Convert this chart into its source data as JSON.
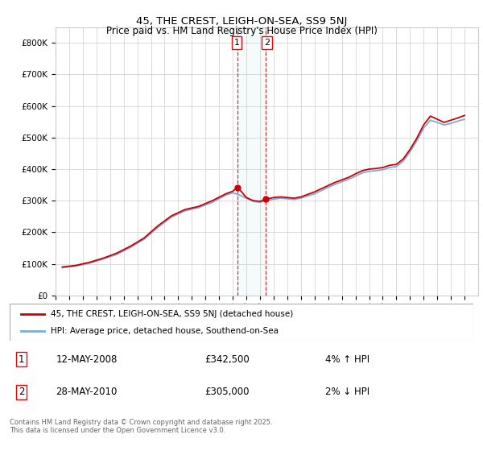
{
  "title": "45, THE CREST, LEIGH-ON-SEA, SS9 5NJ",
  "subtitle": "Price paid vs. HM Land Registry's House Price Index (HPI)",
  "legend_line1": "45, THE CREST, LEIGH-ON-SEA, SS9 5NJ (detached house)",
  "legend_line2": "HPI: Average price, detached house, Southend-on-Sea",
  "annotation1_date": "12-MAY-2008",
  "annotation1_price": "£342,500",
  "annotation1_hpi": "4% ↑ HPI",
  "annotation2_date": "28-MAY-2010",
  "annotation2_price": "£305,000",
  "annotation2_hpi": "2% ↓ HPI",
  "copyright": "Contains HM Land Registry data © Crown copyright and database right 2025.\nThis data is licensed under the Open Government Licence v3.0.",
  "sale1_x": 2008.36,
  "sale1_y": 342500,
  "sale2_x": 2010.41,
  "sale2_y": 305000,
  "background_color": "#ffffff",
  "grid_color": "#cccccc",
  "line_color_red": "#cc0000",
  "line_color_blue": "#7aaed6",
  "ylim": [
    0,
    850000
  ],
  "xlim_start": 1995,
  "xlim_end": 2026,
  "years_hpi": [
    1995.5,
    1996.5,
    1997.5,
    1998.5,
    1999.5,
    2000.5,
    2001.5,
    2002.5,
    2003.5,
    2004.5,
    2005.5,
    2006.5,
    2007.5,
    2008.0,
    2008.5,
    2009.0,
    2009.5,
    2010.0,
    2010.5,
    2011.0,
    2011.5,
    2012.0,
    2012.5,
    2013.0,
    2013.5,
    2014.0,
    2014.5,
    2015.0,
    2015.5,
    2016.0,
    2016.5,
    2017.0,
    2017.5,
    2018.0,
    2018.5,
    2019.0,
    2019.5,
    2020.0,
    2020.5,
    2021.0,
    2021.5,
    2022.0,
    2022.5,
    2023.0,
    2023.5,
    2024.0,
    2024.5,
    2025.0
  ],
  "hpi_values": [
    88000,
    93000,
    102000,
    115000,
    130000,
    152000,
    178000,
    215000,
    248000,
    268000,
    278000,
    295000,
    318000,
    325000,
    318000,
    308000,
    298000,
    295000,
    300000,
    305000,
    308000,
    306000,
    304000,
    308000,
    315000,
    322000,
    332000,
    342000,
    352000,
    360000,
    368000,
    378000,
    388000,
    393000,
    395000,
    398000,
    405000,
    408000,
    425000,
    455000,
    490000,
    530000,
    555000,
    548000,
    540000,
    545000,
    552000,
    558000
  ],
  "years_red": [
    1995.5,
    1996.5,
    1997.5,
    1998.5,
    1999.5,
    2000.5,
    2001.5,
    2002.5,
    2003.5,
    2004.5,
    2005.5,
    2006.5,
    2007.5,
    2008.0,
    2008.36,
    2009.0,
    2009.5,
    2010.0,
    2010.41,
    2011.0,
    2011.5,
    2012.0,
    2012.5,
    2013.0,
    2013.5,
    2014.0,
    2014.5,
    2015.0,
    2015.5,
    2016.0,
    2016.5,
    2017.0,
    2017.5,
    2018.0,
    2018.5,
    2019.0,
    2019.5,
    2020.0,
    2020.5,
    2021.0,
    2021.5,
    2022.0,
    2022.5,
    2023.0,
    2023.5,
    2024.0,
    2024.5,
    2025.0
  ],
  "red_values": [
    90000,
    95000,
    105000,
    118000,
    134000,
    156000,
    182000,
    220000,
    252000,
    272000,
    282000,
    300000,
    322000,
    330000,
    342500,
    310000,
    300000,
    298000,
    305000,
    310000,
    312000,
    310000,
    308000,
    312000,
    320000,
    328000,
    338000,
    348000,
    358000,
    366000,
    374000,
    385000,
    395000,
    400000,
    402000,
    405000,
    412000,
    415000,
    432000,
    462000,
    498000,
    540000,
    568000,
    558000,
    548000,
    555000,
    562000,
    570000
  ]
}
